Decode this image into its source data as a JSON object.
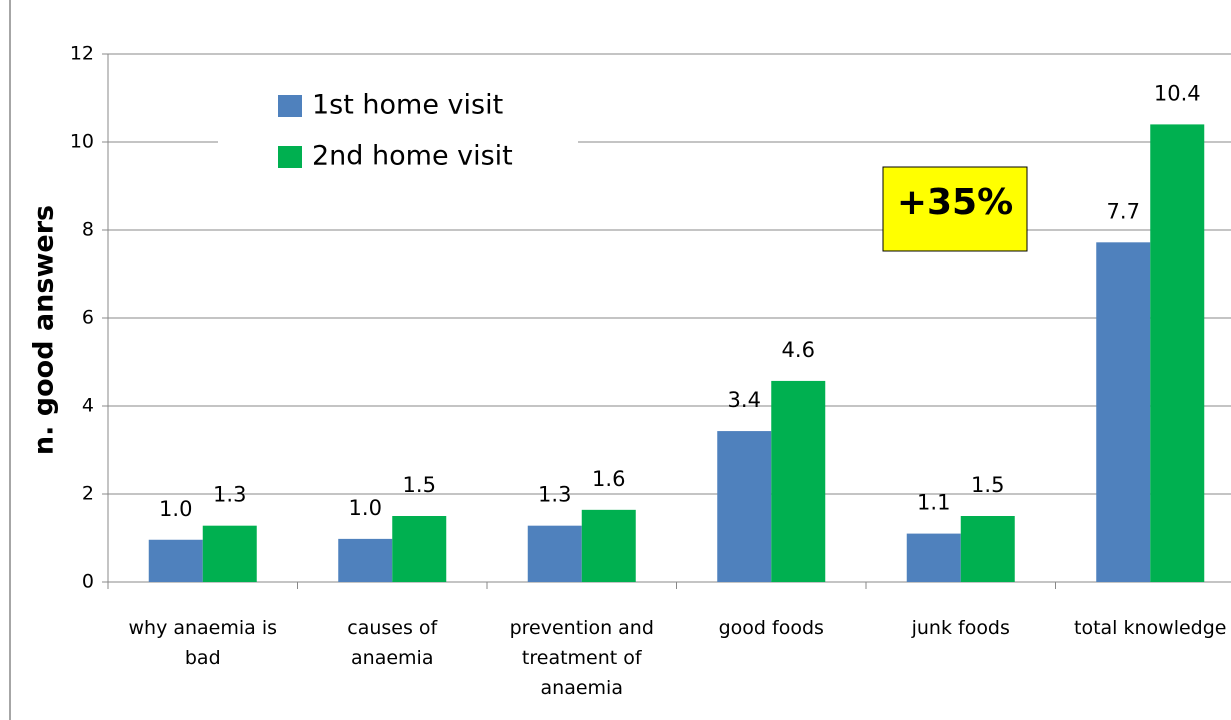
{
  "chart_data": {
    "type": "bar",
    "y_label": "n. good answers",
    "categories": [
      "why anaemia is bad",
      "causes of anaemia",
      "prevention and treatment of anaemia",
      "good foods",
      "junk foods",
      "total knowledge"
    ],
    "series": [
      {
        "name": "1st home visit",
        "color": "#4f81bd",
        "values": [
          0.96,
          0.98,
          1.28,
          3.43,
          1.1,
          7.72
        ],
        "value_labels": [
          "1.0",
          "1.0",
          "1.3",
          "3.4",
          "1.1",
          "7.7"
        ]
      },
      {
        "name": "2nd home visit",
        "color": "#00b050",
        "values": [
          1.28,
          1.5,
          1.64,
          4.57,
          1.5,
          10.4
        ],
        "value_labels": [
          "1.3",
          "1.5",
          "1.6",
          "4.6",
          "1.5",
          "10.4"
        ]
      }
    ],
    "annotation": "+35%",
    "annotation_color": "#ffff00",
    "ylim": [
      0,
      12
    ],
    "yticks": [
      0,
      2,
      4,
      6,
      8,
      10,
      12
    ],
    "grid": true,
    "legend": "top-left"
  }
}
